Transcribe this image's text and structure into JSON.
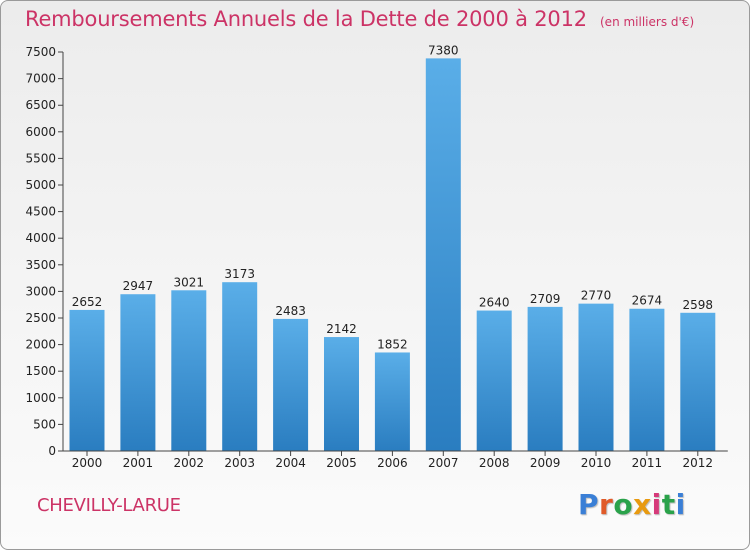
{
  "header": {
    "title": "Remboursements Annuels de la Dette de 2000 à 2012",
    "unit": "(en milliers d'€)"
  },
  "footer": {
    "commune": "CHEVILLY-LARUE",
    "logo_text": "Proxiti"
  },
  "colors": {
    "title": "#cc3366",
    "bar_top": "#5aaee8",
    "bar_bottom": "#2a7dc0",
    "logo_letters": [
      "#3a7fd6",
      "#e05a28",
      "#2aa24a",
      "#e89a10",
      "#d63a7a",
      "#2aa24a",
      "#3a7fd6"
    ]
  },
  "chart_data": {
    "type": "bar",
    "title": "Remboursements Annuels de la Dette de 2000 à 2012",
    "categories": [
      "2000",
      "2001",
      "2002",
      "2003",
      "2004",
      "2005",
      "2006",
      "2007",
      "2008",
      "2009",
      "2010",
      "2011",
      "2012"
    ],
    "values": [
      2652,
      2947,
      3021,
      3173,
      2483,
      2142,
      1852,
      7380,
      2640,
      2709,
      2770,
      2674,
      2598
    ],
    "ylim": [
      0,
      7500
    ],
    "yticks": [
      0,
      500,
      1000,
      1500,
      2000,
      2500,
      3000,
      3500,
      4000,
      4500,
      5000,
      5500,
      6000,
      6500,
      7000,
      7500
    ],
    "grid": false,
    "data_labels": true
  }
}
